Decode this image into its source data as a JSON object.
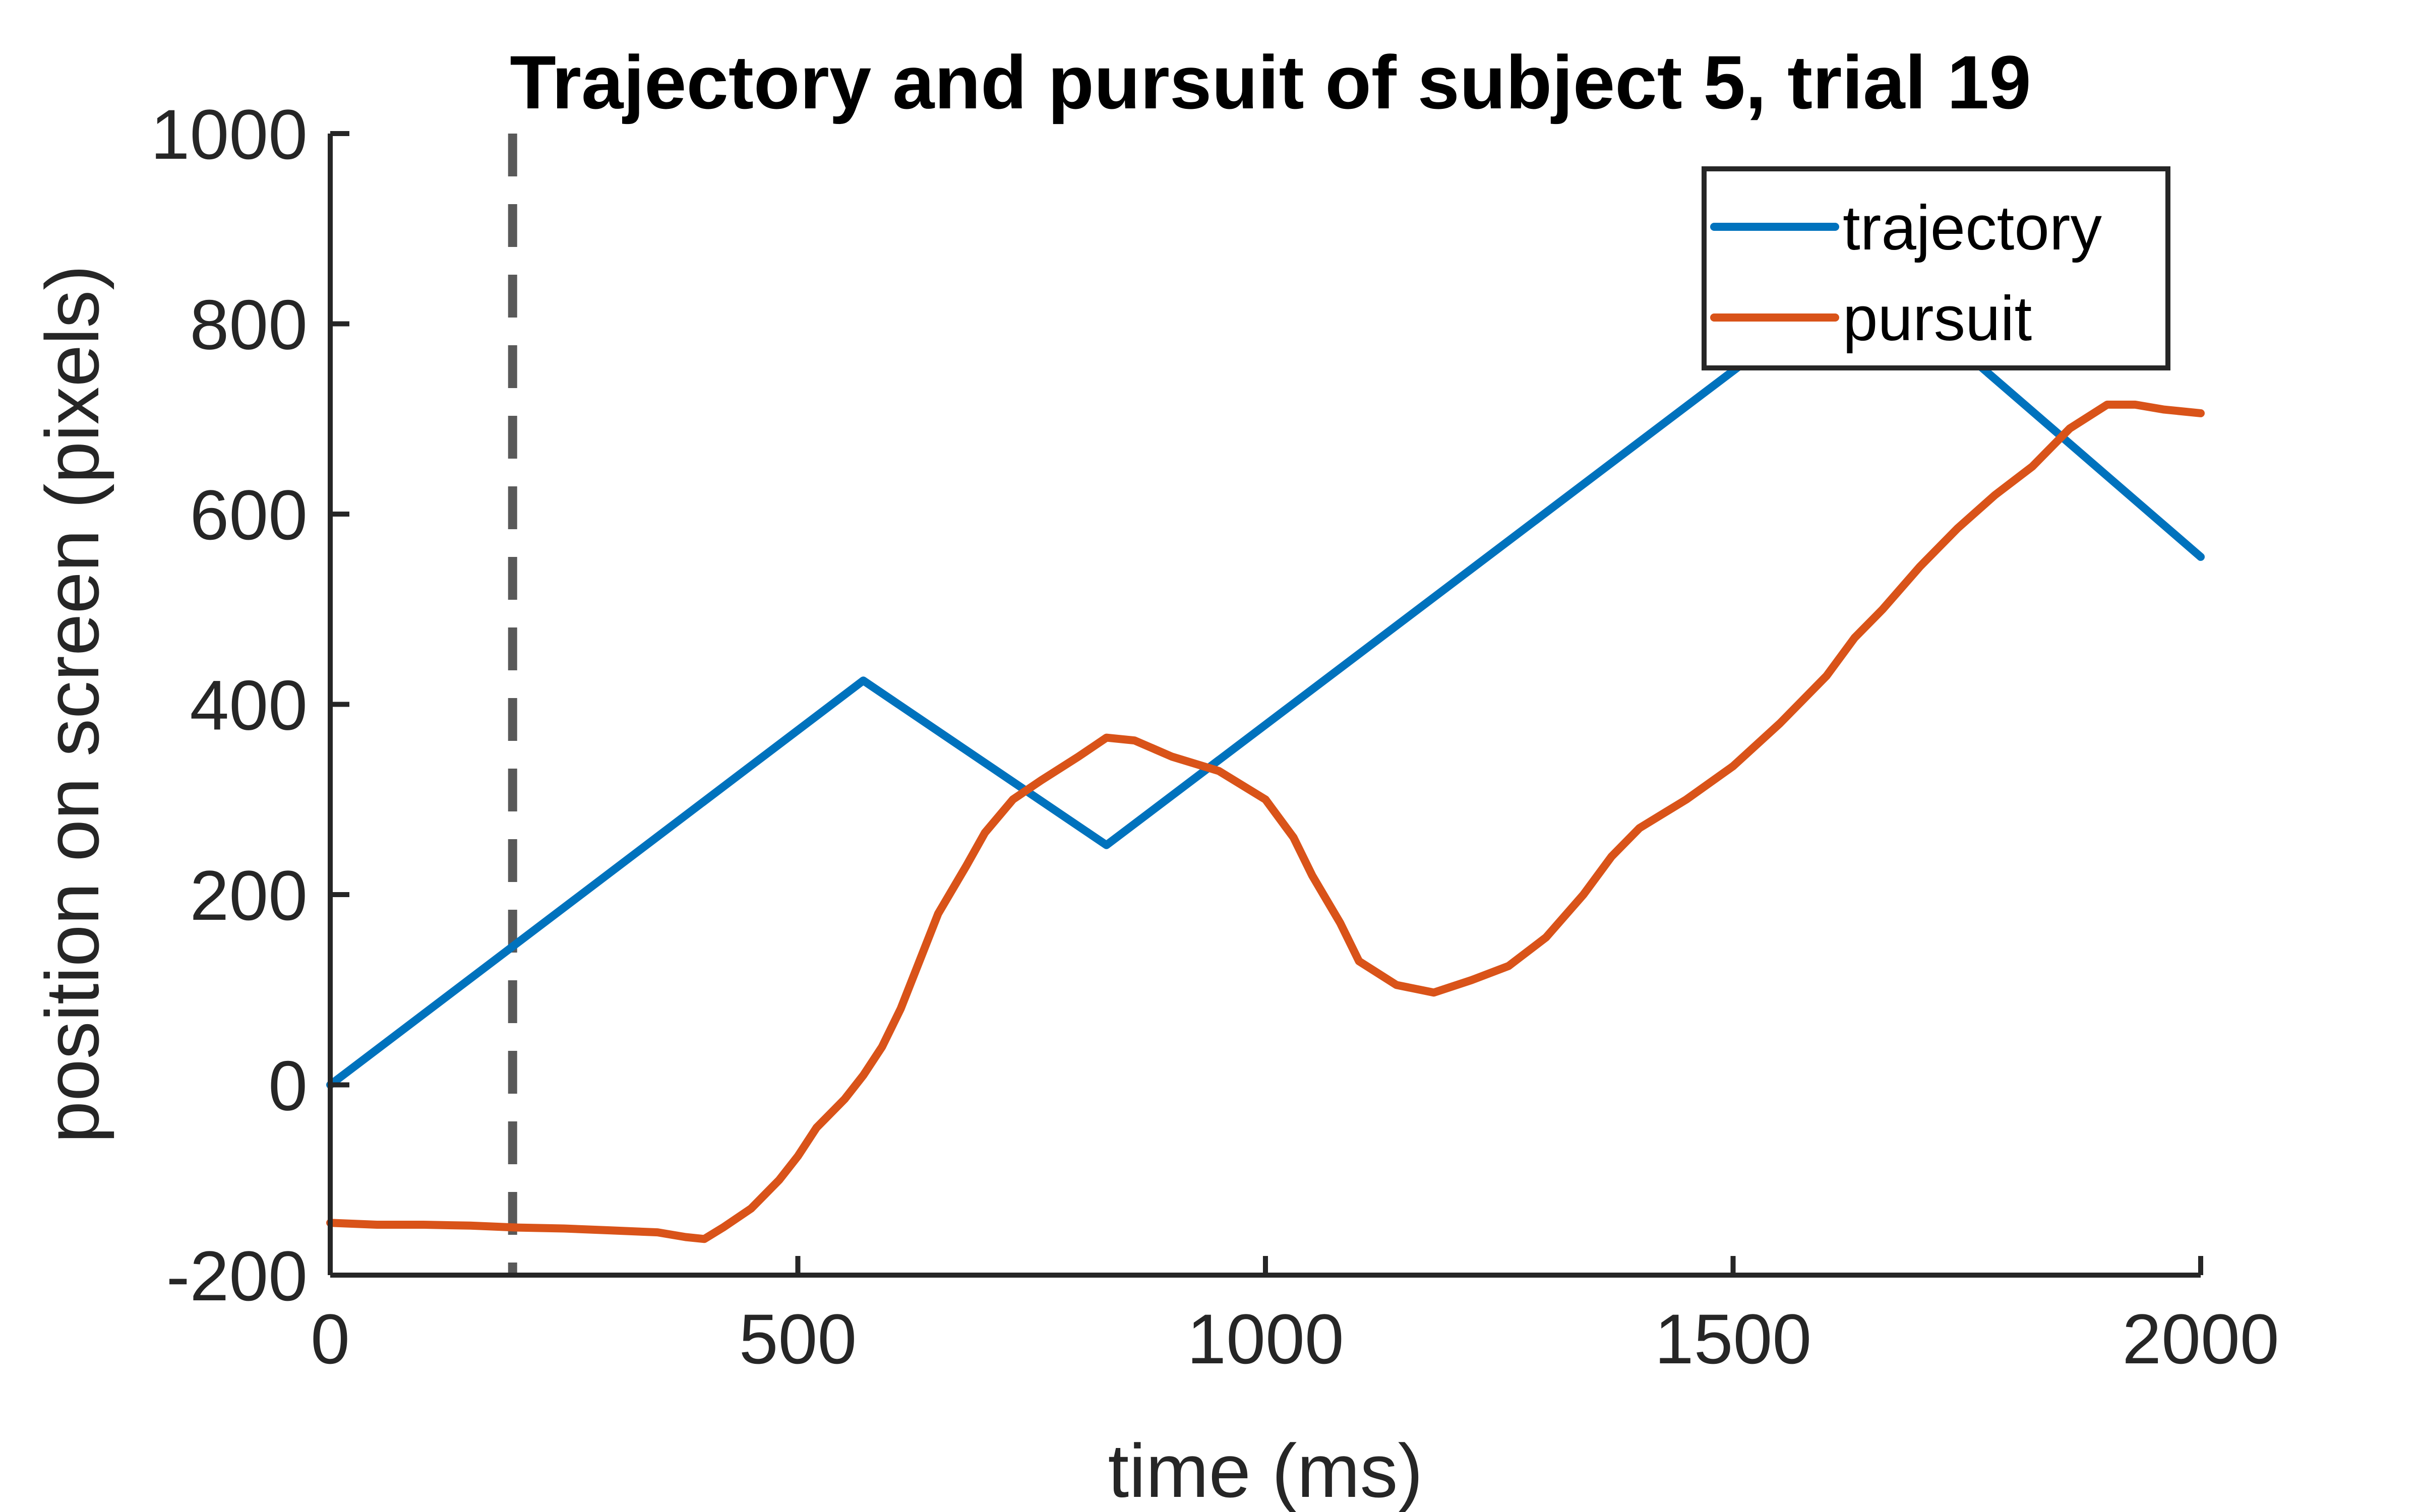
{
  "chart_data": {
    "type": "line",
    "title": "Trajectory and pursuit of subject 5, trial 19",
    "xlabel": "time (ms)",
    "ylabel": "position on screen (pixels)",
    "xlim": [
      0,
      2000
    ],
    "ylim": [
      -200,
      1000
    ],
    "xticks": [
      0,
      500,
      1000,
      1500,
      2000
    ],
    "xtick_labels": [
      "0",
      "500",
      "1000",
      "1500",
      "2000"
    ],
    "yticks": [
      -200,
      0,
      200,
      400,
      600,
      800,
      1000
    ],
    "ytick_labels": [
      "-200",
      "0",
      "200",
      "400",
      "600",
      "800",
      "1000"
    ],
    "grid": false,
    "legend_position": "top-right",
    "vertical_marker": {
      "x": 195,
      "style": "dashed",
      "color": "#595959"
    },
    "series": [
      {
        "name": "trajectory",
        "color": "#0072BD",
        "points": [
          [
            0,
            0
          ],
          [
            570,
            425
          ],
          [
            830,
            252
          ],
          [
            1580,
            810
          ],
          [
            1700,
            810
          ],
          [
            2000,
            555
          ]
        ]
      },
      {
        "name": "pursuit",
        "color": "#D95319",
        "points": [
          [
            0,
            -145
          ],
          [
            50,
            -147
          ],
          [
            100,
            -147
          ],
          [
            150,
            -148
          ],
          [
            200,
            -150
          ],
          [
            250,
            -151
          ],
          [
            300,
            -153
          ],
          [
            350,
            -155
          ],
          [
            380,
            -160
          ],
          [
            400,
            -162
          ],
          [
            420,
            -150
          ],
          [
            450,
            -130
          ],
          [
            480,
            -100
          ],
          [
            500,
            -75
          ],
          [
            520,
            -45
          ],
          [
            550,
            -15
          ],
          [
            570,
            10
          ],
          [
            590,
            40
          ],
          [
            610,
            80
          ],
          [
            630,
            130
          ],
          [
            650,
            180
          ],
          [
            680,
            230
          ],
          [
            700,
            265
          ],
          [
            730,
            300
          ],
          [
            760,
            320
          ],
          [
            800,
            345
          ],
          [
            830,
            365
          ],
          [
            860,
            362
          ],
          [
            900,
            345
          ],
          [
            950,
            330
          ],
          [
            1000,
            300
          ],
          [
            1030,
            260
          ],
          [
            1050,
            220
          ],
          [
            1080,
            170
          ],
          [
            1100,
            130
          ],
          [
            1140,
            105
          ],
          [
            1180,
            97
          ],
          [
            1220,
            110
          ],
          [
            1260,
            125
          ],
          [
            1300,
            155
          ],
          [
            1340,
            200
          ],
          [
            1370,
            240
          ],
          [
            1400,
            270
          ],
          [
            1450,
            300
          ],
          [
            1500,
            335
          ],
          [
            1550,
            380
          ],
          [
            1600,
            430
          ],
          [
            1630,
            470
          ],
          [
            1660,
            500
          ],
          [
            1700,
            545
          ],
          [
            1740,
            585
          ],
          [
            1780,
            620
          ],
          [
            1820,
            650
          ],
          [
            1860,
            690
          ],
          [
            1900,
            715
          ],
          [
            1930,
            715
          ],
          [
            1960,
            710
          ],
          [
            2000,
            706
          ]
        ]
      }
    ]
  }
}
